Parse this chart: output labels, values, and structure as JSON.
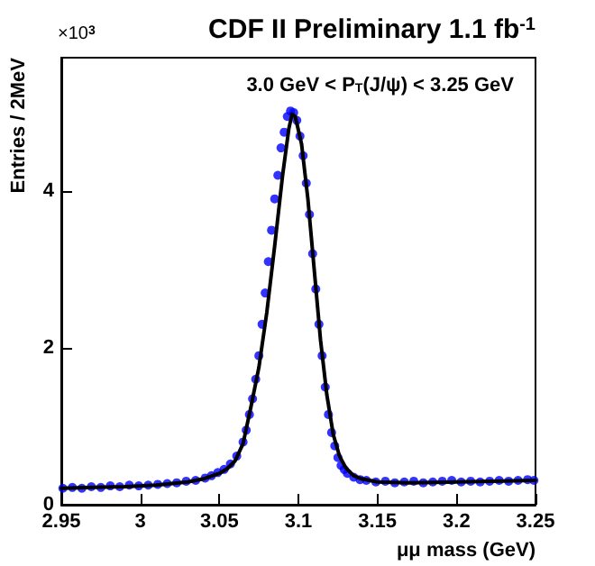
{
  "chart_data": {
    "type": "scatter",
    "title": "CDF II Preliminary 1.1 fb$^{-1}$",
    "subtitle": "3.0 GeV < P$_{T}$(J/ψ) < 3.25 GeV",
    "xlabel": "μμ mass (GeV)",
    "ylabel": "Entries / 2MeV",
    "annotations": [
      "×10$^{3}$"
    ],
    "xlim": [
      2.95,
      3.25
    ],
    "ylim": [
      0,
      5.7
    ],
    "xticks": [
      2.95,
      3,
      3.05,
      3.1,
      3.15,
      3.2,
      3.25
    ],
    "yticks": [
      0,
      2,
      4
    ],
    "grid": false,
    "series": [
      {
        "color": "#0000ff",
        "marker": "circle",
        "x": [
          2.951,
          2.957,
          2.963,
          2.969,
          2.975,
          2.981,
          2.987,
          2.993,
          2.999,
          3.005,
          3.011,
          3.017,
          3.023,
          3.029,
          3.035,
          3.041,
          3.045,
          3.049,
          3.053,
          3.057,
          3.061,
          3.065,
          3.067,
          3.069,
          3.071,
          3.073,
          3.075,
          3.077,
          3.079,
          3.081,
          3.083,
          3.085,
          3.087,
          3.089,
          3.091,
          3.093,
          3.095,
          3.097,
          3.099,
          3.101,
          3.103,
          3.105,
          3.107,
          3.109,
          3.111,
          3.113,
          3.115,
          3.117,
          3.119,
          3.121,
          3.123,
          3.125,
          3.127,
          3.129,
          3.131,
          3.135,
          3.139,
          3.143,
          3.149,
          3.155,
          3.161,
          3.167,
          3.173,
          3.179,
          3.185,
          3.191,
          3.197,
          3.203,
          3.209,
          3.215,
          3.221,
          3.227,
          3.233,
          3.239,
          3.245,
          3.249
        ],
        "values": [
          0.21,
          0.22,
          0.21,
          0.23,
          0.22,
          0.24,
          0.23,
          0.25,
          0.24,
          0.25,
          0.26,
          0.27,
          0.28,
          0.3,
          0.31,
          0.34,
          0.37,
          0.41,
          0.45,
          0.52,
          0.62,
          0.8,
          0.95,
          1.15,
          1.35,
          1.6,
          1.9,
          2.3,
          2.7,
          3.1,
          3.5,
          3.9,
          4.2,
          4.55,
          4.75,
          4.95,
          5.02,
          5.0,
          4.9,
          4.7,
          4.45,
          4.1,
          3.7,
          3.2,
          2.75,
          2.3,
          1.9,
          1.5,
          1.15,
          0.92,
          0.75,
          0.6,
          0.5,
          0.45,
          0.4,
          0.35,
          0.32,
          0.31,
          0.29,
          0.3,
          0.28,
          0.29,
          0.3,
          0.28,
          0.29,
          0.3,
          0.31,
          0.29,
          0.3,
          0.29,
          0.3,
          0.31,
          0.3,
          0.31,
          0.32,
          0.31
        ]
      },
      {
        "type": "line",
        "color": "#000000",
        "marker": "none",
        "line_style": "solid",
        "x": [
          2.95,
          2.97,
          2.99,
          3.01,
          3.03,
          3.04,
          3.05,
          3.055,
          3.06,
          3.065,
          3.07,
          3.075,
          3.08,
          3.085,
          3.09,
          3.094,
          3.096,
          3.098,
          3.102,
          3.106,
          3.11,
          3.114,
          3.118,
          3.122,
          3.126,
          3.13,
          3.135,
          3.14,
          3.15,
          3.17,
          3.2,
          3.25
        ],
        "values": [
          0.21,
          0.22,
          0.23,
          0.25,
          0.29,
          0.33,
          0.4,
          0.46,
          0.56,
          0.78,
          1.25,
          1.75,
          2.45,
          3.3,
          4.2,
          4.8,
          4.98,
          4.95,
          4.6,
          3.9,
          3.0,
          2.1,
          1.4,
          0.9,
          0.62,
          0.47,
          0.37,
          0.33,
          0.29,
          0.28,
          0.29,
          0.31
        ]
      }
    ]
  }
}
